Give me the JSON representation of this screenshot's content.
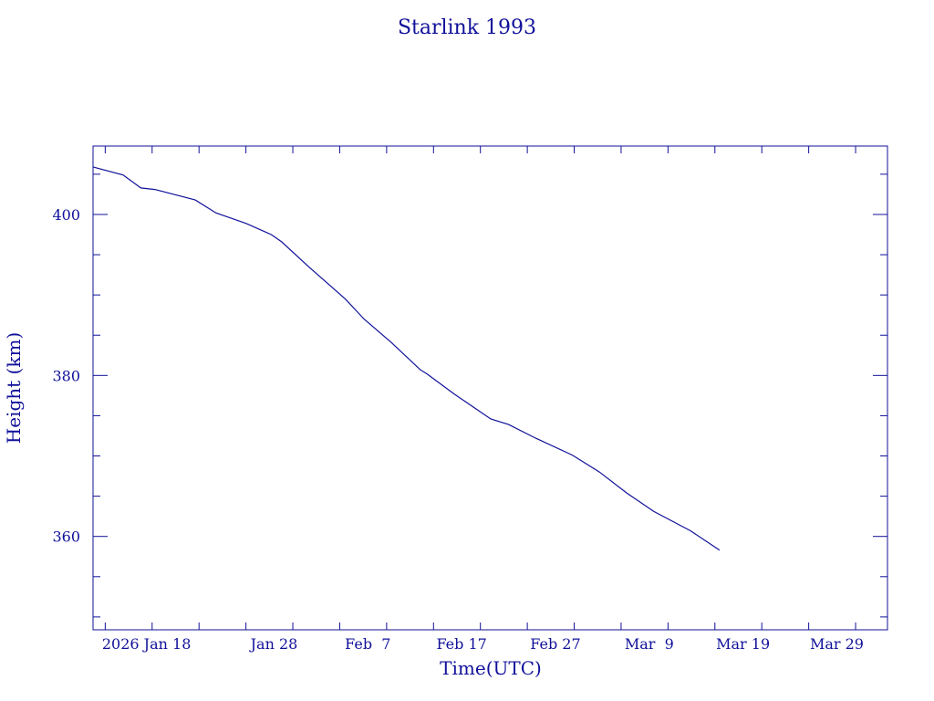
{
  "chart_data": {
    "type": "line",
    "title": "Starlink 1993",
    "xlabel": "Time(UTC)",
    "ylabel": "Height (km)",
    "x_units": "day of year 2026",
    "xlim": [
      8.7,
      93.4
    ],
    "ylim": [
      348.4,
      408.5
    ],
    "x_major_ticks": [
      18,
      28,
      38,
      48,
      58,
      68,
      78,
      88
    ],
    "x_minor_step": 5,
    "x_tick_labels": [
      "2026 Jan 18",
      "Jan 28",
      "Feb  7",
      "Feb 17",
      "Feb 27",
      "Mar  9",
      "Mar 19",
      "Mar 29"
    ],
    "y_major_ticks": [
      360,
      380,
      400
    ],
    "y_minor_step": 5,
    "y_tick_labels": [
      "360",
      "380",
      "400"
    ],
    "grid": false,
    "color": "#10109a",
    "series": [
      {
        "name": "Height",
        "x": [
          8.7,
          11.9,
          13.8,
          15.3,
          19.6,
          21.8,
          25.0,
          27.7,
          28.8,
          31.7,
          35.6,
          37.6,
          40.5,
          43.6,
          44.3,
          47.2,
          51.1,
          53.0,
          55.9,
          59.8,
          62.7,
          65.6,
          68.5,
          72.4,
          75.5
        ],
        "y": [
          405.9,
          404.9,
          403.3,
          403.1,
          401.8,
          400.2,
          398.9,
          397.5,
          396.6,
          393.5,
          389.5,
          387.0,
          384.1,
          380.7,
          380.2,
          377.7,
          374.6,
          373.9,
          372.2,
          370.1,
          368.0,
          365.4,
          363.1,
          360.7,
          358.3
        ]
      }
    ]
  }
}
